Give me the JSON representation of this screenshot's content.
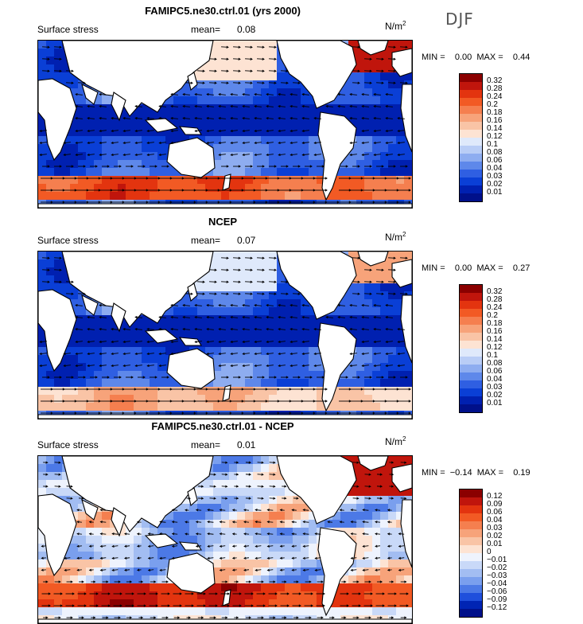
{
  "season": "DJF",
  "panels": [
    {
      "id": "model",
      "title": "FAMIPC5.ne30.ctrl.01 (yrs 2000)",
      "field": "Surface stress",
      "mean_label": "mean=",
      "mean_value": "0.08",
      "units": "N/m",
      "units_exp": "2",
      "min_max": "MIN =    0.00  MAX =    0.44",
      "colorbar_ticks": [
        "0.32",
        "0.28",
        "0.24",
        "0.2",
        "0.18",
        "0.16",
        "0.14",
        "0.12",
        "0.1",
        "0.08",
        "0.06",
        "0.04",
        "0.03",
        "0.02",
        "0.01"
      ],
      "colors": [
        "#8b0000",
        "#c0150c",
        "#e3340f",
        "#f25a24",
        "#f57f4f",
        "#f7a37a",
        "#f9c4a6",
        "#fde3d3",
        "#dfe9fb",
        "#b9cdf6",
        "#8eadf0",
        "#5e88ea",
        "#2f5fe2",
        "#0a3fd6",
        "#0020b0",
        "#00108a"
      ]
    },
    {
      "id": "obs",
      "title": "NCEP",
      "field": "Surface stress",
      "mean_label": "mean=",
      "mean_value": "0.07",
      "units": "N/m",
      "units_exp": "2",
      "min_max": "MIN =    0.00  MAX =    0.27",
      "colorbar_ticks": [
        "0.32",
        "0.28",
        "0.24",
        "0.2",
        "0.18",
        "0.16",
        "0.14",
        "0.12",
        "0.1",
        "0.08",
        "0.06",
        "0.04",
        "0.03",
        "0.02",
        "0.01"
      ],
      "colors": [
        "#8b0000",
        "#c0150c",
        "#e3340f",
        "#f25a24",
        "#f57f4f",
        "#f7a37a",
        "#f9c4a6",
        "#fde3d3",
        "#dfe9fb",
        "#b9cdf6",
        "#8eadf0",
        "#5e88ea",
        "#2f5fe2",
        "#0a3fd6",
        "#0020b0",
        "#00108a"
      ]
    },
    {
      "id": "diff",
      "title": "FAMIPC5.ne30.ctrl.01 - NCEP",
      "field": "Surface stress",
      "mean_label": "mean=",
      "mean_value": "0.01",
      "units": "N/m",
      "units_exp": "2",
      "min_max": "MIN =  −0.14  MAX =    0.19",
      "colorbar_ticks": [
        "0.12",
        "0.09",
        "0.06",
        "0.04",
        "0.03",
        "0.02",
        "0.01",
        "0",
        "−0.01",
        "−0.02",
        "−0.03",
        "−0.04",
        "−0.06",
        "−0.09",
        "−0.12"
      ],
      "colors": [
        "#8b0000",
        "#c0150c",
        "#e3340f",
        "#f25a24",
        "#f57f4f",
        "#f7a37a",
        "#f9c4a6",
        "#fde3d3",
        "#eef3fd",
        "#c9d9f8",
        "#a2bdf2",
        "#7a9fee",
        "#4c79e6",
        "#1f4fdc",
        "#0024b4",
        "#00108a"
      ]
    }
  ]
}
